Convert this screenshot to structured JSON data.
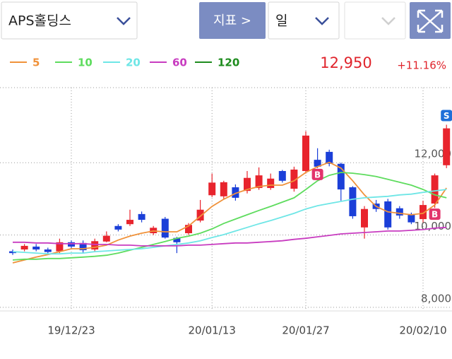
{
  "ui": {
    "stock": "APS홀딩스",
    "indicator_button": "지표 >",
    "period": "일",
    "price": "12,950",
    "change": "+11.16%"
  },
  "chart_data": {
    "type": "candlestick",
    "categories": [
      null,
      null,
      null,
      null,
      null,
      "19/12/23",
      null,
      null,
      null,
      null,
      null,
      null,
      null,
      null,
      null,
      null,
      null,
      "20/01/13",
      null,
      null,
      null,
      null,
      null,
      null,
      null,
      "20/01/27",
      null,
      null,
      null,
      null,
      null,
      null,
      null,
      null,
      null,
      "20/02/10",
      null,
      null
    ],
    "open": [
      9550,
      9600,
      9680,
      9600,
      9550,
      9800,
      9780,
      9600,
      9820,
      10250,
      10300,
      10580,
      10050,
      10450,
      9920,
      10050,
      10400,
      11100,
      11070,
      11320,
      11220,
      11300,
      11300,
      11770,
      11280,
      11770,
      12080,
      12300,
      11970,
      11320,
      10210,
      10870,
      10930,
      10740,
      10580,
      10440,
      10870,
      11930
    ],
    "high": [
      9600,
      9750,
      9750,
      9650,
      9900,
      9850,
      9850,
      9900,
      10100,
      10300,
      10700,
      10650,
      10250,
      10500,
      9950,
      10330,
      10970,
      11700,
      11500,
      11400,
      11770,
      11870,
      11700,
      11800,
      11890,
      12870,
      12400,
      12360,
      12000,
      11350,
      10800,
      10970,
      11000,
      10800,
      10620,
      10950,
      11700,
      13050
    ],
    "low": [
      9450,
      9550,
      9550,
      9450,
      9500,
      9600,
      9500,
      9550,
      9800,
      10100,
      10250,
      10350,
      10000,
      9900,
      9500,
      10000,
      10350,
      11050,
      11000,
      10950,
      11150,
      11250,
      11250,
      11450,
      11200,
      11700,
      11850,
      11900,
      10950,
      10450,
      9900,
      10640,
      10150,
      10450,
      10300,
      10350,
      10750,
      11850
    ],
    "close": [
      9500,
      9700,
      9600,
      9530,
      9800,
      9680,
      9580,
      9830,
      9980,
      10150,
      10420,
      10420,
      10200,
      9930,
      9800,
      10280,
      10700,
      11450,
      11460,
      11030,
      11580,
      11650,
      11560,
      11500,
      11810,
      12750,
      11890,
      11970,
      11260,
      10520,
      10720,
      10720,
      10210,
      10540,
      10350,
      10830,
      11650,
      12950
    ],
    "up_color": "#e8242d",
    "down_color": "#1b3fd8",
    "series": [
      {
        "name": "5",
        "color": "#f0923a",
        "values": [
          9230,
          9310,
          9390,
          9460,
          9540,
          9620,
          9620,
          9660,
          9720,
          9860,
          9970,
          10050,
          10110,
          10090,
          10090,
          10250,
          10520,
          10790,
          10990,
          11150,
          11260,
          11340,
          11380,
          11380,
          11500,
          11730,
          11890,
          12010,
          11850,
          11500,
          11110,
          10790,
          10640,
          10600,
          10560,
          10600,
          10830,
          11300
        ]
      },
      {
        "name": "10",
        "color": "#5edc5e",
        "values": [
          9310,
          9330,
          9330,
          9350,
          9350,
          9370,
          9390,
          9410,
          9440,
          9500,
          9580,
          9660,
          9740,
          9820,
          9910,
          9970,
          10050,
          10170,
          10320,
          10440,
          10560,
          10680,
          10790,
          10910,
          11030,
          11260,
          11500,
          11650,
          11730,
          11710,
          11670,
          11620,
          11540,
          11460,
          11380,
          11260,
          11110,
          11030
        ]
      },
      {
        "name": "20",
        "color": "#6ee6e6",
        "values": [
          9540,
          9520,
          9500,
          9480,
          9480,
          9500,
          9500,
          9540,
          9560,
          9580,
          9600,
          9620,
          9660,
          9700,
          9740,
          9780,
          9840,
          9930,
          10010,
          10110,
          10210,
          10310,
          10400,
          10500,
          10600,
          10720,
          10810,
          10870,
          10930,
          10990,
          11030,
          11050,
          11070,
          11110,
          11130,
          11180,
          11220,
          11260
        ]
      },
      {
        "name": "60",
        "color": "#c83cc0",
        "values": [
          9800,
          9800,
          9780,
          9780,
          9760,
          9760,
          9760,
          9740,
          9740,
          9720,
          9720,
          9700,
          9700,
          9700,
          9700,
          9720,
          9720,
          9740,
          9760,
          9780,
          9780,
          9800,
          9820,
          9840,
          9880,
          9910,
          9950,
          9990,
          10030,
          10050,
          10070,
          10090,
          10110,
          10110,
          10130,
          10150,
          10190,
          10210
        ]
      },
      {
        "name": "120",
        "color": "#1e8c1e",
        "values": [
          null,
          null,
          null,
          null,
          null,
          null,
          null,
          null,
          null,
          null,
          null,
          null,
          null,
          null,
          null,
          null,
          null,
          null,
          null,
          null,
          null,
          null,
          null,
          null,
          null,
          null,
          null,
          null,
          null,
          null,
          null,
          null,
          null,
          null,
          null,
          null,
          null,
          null
        ]
      }
    ],
    "signals": [
      {
        "label": "B",
        "index": 26
      },
      {
        "label": "B",
        "index": 36
      },
      {
        "label": "S",
        "index": 37
      }
    ],
    "ylim": [
      7900,
      14350
    ],
    "yticks": [
      {
        "value": 8000,
        "label": "8,000"
      },
      {
        "value": 10000,
        "label": "10,000"
      },
      {
        "value": 12000,
        "label": "12,000"
      }
    ],
    "grid": true
  }
}
